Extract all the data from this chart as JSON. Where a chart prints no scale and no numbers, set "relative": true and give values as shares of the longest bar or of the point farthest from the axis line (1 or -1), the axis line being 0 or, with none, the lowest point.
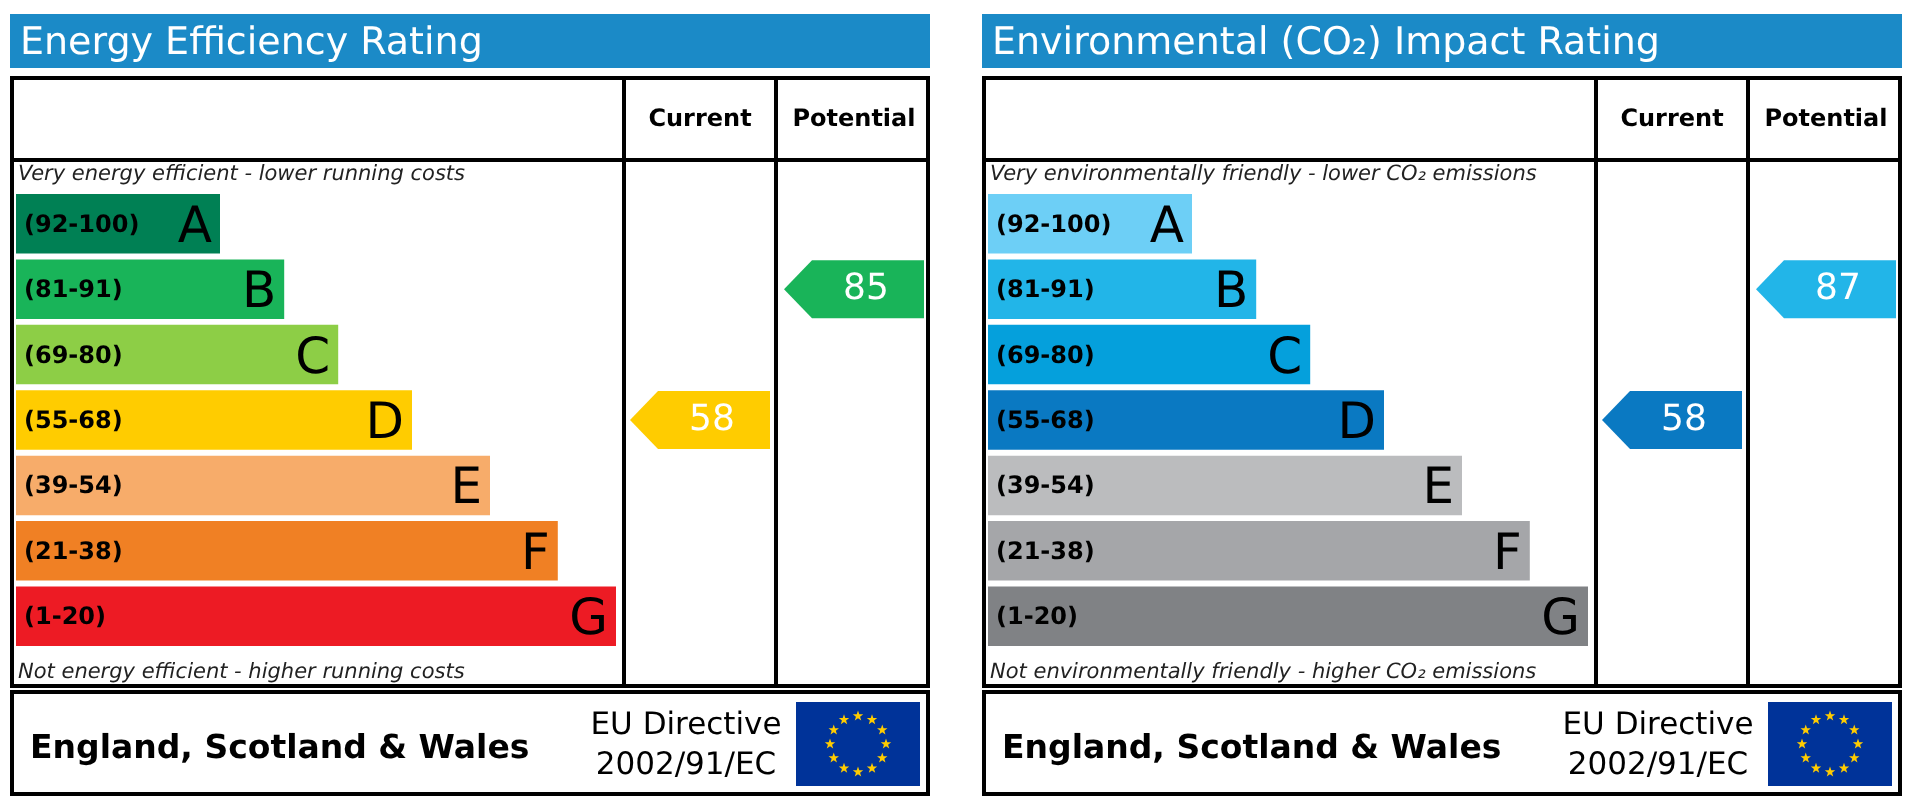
{
  "chart_data": [
    {
      "type": "bar",
      "orientation": "horizontal",
      "relative": true,
      "title": "Energy Efficiency Rating",
      "categories": [
        "(92-100)",
        "(81-91)",
        "(69-80)",
        "(55-68)",
        "(39-54)",
        "(21-38)",
        "(1-20)"
      ],
      "values": [
        0.34,
        0.447,
        0.537,
        0.66,
        0.79,
        0.903,
        1
      ],
      "colors": [
        "#008054",
        "#19b459",
        "#8dce46",
        "#ffcc00",
        "#f7ac6a",
        "#f08024",
        "#ed1b24"
      ],
      "annotations": [
        "Very energy efficient - lower running costs",
        "Not energy efficient - higher running costs",
        "Current",
        "Potential",
        "58",
        "85",
        "England, Scotland & Wales",
        "EU Directive 2002/91/EC",
        {
          "text": "A",
          "x": 0.34,
          "y": "(92-100)"
        },
        {
          "text": "B",
          "x": 0.447,
          "y": "(81-91)"
        },
        {
          "text": "C",
          "x": 0.537,
          "y": "(69-80)"
        },
        {
          "text": "D",
          "x": 0.66,
          "y": "(55-68)"
        },
        {
          "text": "E",
          "x": 0.79,
          "y": "(39-54)"
        },
        {
          "text": "F",
          "x": 0.903,
          "y": "(21-38)"
        },
        {
          "text": "G",
          "x": 1,
          "y": "(1-20)"
        }
      ]
    },
    {
      "type": "bar",
      "orientation": "horizontal",
      "relative": true,
      "title": "Environmental (CO₂) Impact Rating",
      "categories": [
        "(92-100)",
        "(81-91)",
        "(69-80)",
        "(55-68)",
        "(39-54)",
        "(21-38)",
        "(1-20)"
      ],
      "values": [
        0.34,
        0.447,
        0.537,
        0.66,
        0.79,
        0.903,
        1
      ],
      "colors": [
        "#6dcff6",
        "#22b5e8",
        "#05a0dc",
        "#0a79c2",
        "#bbbcbe",
        "#a5a6a9",
        "#808285"
      ],
      "annotations": [
        "Very environmentally friendly - lower CO₂ emissions",
        "Not environmentally friendly - higher CO₂ emissions",
        "Current",
        "Potential",
        "58",
        "87",
        "England, Scotland & Wales",
        "EU Directive 2002/91/EC",
        {
          "text": "A",
          "x": 0.34,
          "y": "(92-100)"
        },
        {
          "text": "B",
          "x": 0.447,
          "y": "(81-91)"
        },
        {
          "text": "C",
          "x": 0.537,
          "y": "(69-80)"
        },
        {
          "text": "D",
          "x": 0.66,
          "y": "(55-68)"
        },
        {
          "text": "E",
          "x": 0.79,
          "y": "(39-54)"
        },
        {
          "text": "F",
          "x": 0.903,
          "y": "(21-38)"
        },
        {
          "text": "G",
          "x": 1,
          "y": "(1-20)"
        }
      ]
    }
  ]
}
